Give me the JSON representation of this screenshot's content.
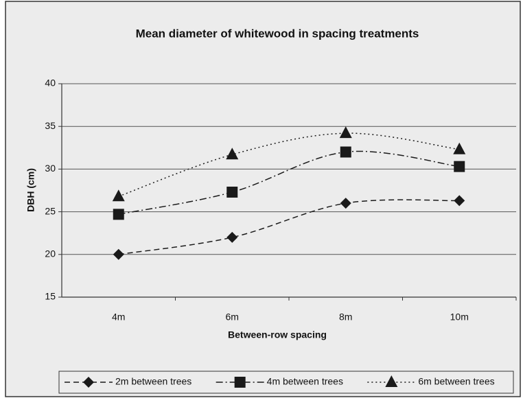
{
  "chart_data": {
    "type": "line",
    "title": "Mean diameter of whitewood in spacing treatments",
    "x_label": "Between-row spacing",
    "y_label": "DBH (cm)",
    "categories": [
      "4m",
      "6m",
      "8m",
      "10m"
    ],
    "series": [
      {
        "name": "2m between trees",
        "color": "#1a1a1a",
        "marker": "diamond",
        "dash": "dashed",
        "values": [
          20,
          22,
          26,
          26.3
        ]
      },
      {
        "name": "4m between trees",
        "color": "#1a1a1a",
        "marker": "square",
        "dash": "dashdot",
        "values": [
          24.7,
          27.3,
          32,
          30.3
        ]
      },
      {
        "name": "6m between trees",
        "color": "#1a1a1a",
        "marker": "triangle",
        "dash": "dotted",
        "values": [
          26.8,
          31.7,
          34.2,
          32.3
        ]
      }
    ],
    "ylim": [
      15,
      40
    ],
    "yticks": [
      15,
      20,
      25,
      30,
      35,
      40
    ],
    "grid": true,
    "legend": "bottom"
  }
}
